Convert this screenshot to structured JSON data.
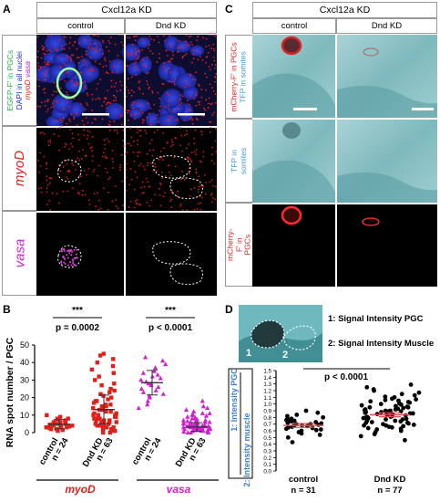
{
  "panelA": {
    "label": "A",
    "header": "Cxcl12a KD",
    "cols": [
      "control",
      "Dnd KD"
    ],
    "row1_label": [
      {
        "text": "EGFP-F' in PGCs",
        "color": "#22b14c"
      },
      {
        "text": "DAPI in all nuclei",
        "color": "#1f2fd6"
      },
      {
        "text": "myoD",
        "color": "#e0201a"
      },
      {
        "text": "vasa",
        "color": "#c020c0"
      }
    ],
    "row2_label": "myoD",
    "row3_label": "vasa"
  },
  "panelB": {
    "label": "B",
    "ylabel": "RNA spot number / PGC",
    "sig": [
      "***",
      "***"
    ],
    "pvals": [
      "p = 0.0002",
      "p < 0.0001"
    ],
    "groups": [
      {
        "name": "control",
        "n": "n = 24"
      },
      {
        "name": "Dnd KD",
        "n": "n = 63"
      },
      {
        "name": "control",
        "n": "n = 24"
      },
      {
        "name": "Dnd KD",
        "n": "n = 63"
      }
    ],
    "gene_labels": [
      "myoD",
      "vasa"
    ]
  },
  "panelC": {
    "label": "C",
    "header": "Cxcl12a KD",
    "cols": [
      "control",
      "Dnd KD"
    ],
    "row1_label": [
      {
        "text": "mCherry-F' in PGCs",
        "color": "#e0201a"
      },
      {
        "text": "TFP in somites",
        "color": "#3a9ad9"
      }
    ],
    "row2_label": "TFP in somites",
    "row3_label": "mCherry-F' in PGCs"
  },
  "panelD": {
    "label": "D",
    "legend1": "1: Signal Intensity PGC",
    "legend2": "2: Signal Intensity Muscle",
    "region1": "1",
    "region2": "2",
    "sig": "***",
    "pval": "p < 0.0001",
    "ylabel_top": "1: Intensity PGC",
    "ylabel_bottom": "2: Intensity muscle",
    "groups": [
      {
        "name": "control",
        "n": "n = 31"
      },
      {
        "name": "Dnd KD",
        "n": "n = 77"
      }
    ]
  },
  "chart_data": [
    {
      "type": "scatter",
      "panel": "B",
      "ylabel": "RNA spot number / PGC",
      "ylim": [
        0,
        50
      ],
      "yticks": [
        0,
        10,
        20,
        30,
        40,
        50
      ],
      "categories": [
        "control (myoD)",
        "Dnd KD (myoD)",
        "control (vasa)",
        "Dnd KD (vasa)"
      ],
      "colors": [
        "#e0201a",
        "#e0201a",
        "#d020d0",
        "#d020d0"
      ],
      "markers": [
        "square",
        "square",
        "triangle",
        "triangle"
      ],
      "means": [
        4.8,
        13.2,
        28.5,
        3.2
      ],
      "sd": [
        2.7,
        8.2,
        7.0,
        2.5
      ],
      "series": [
        {
          "values": [
            1,
            1.5,
            2,
            2,
            2.5,
            3,
            3,
            3.5,
            3.5,
            4,
            4,
            4.5,
            5,
            5,
            5.5,
            6,
            6,
            6.5,
            7,
            7.5,
            8,
            8,
            9,
            10
          ]
        },
        {
          "values": [
            0,
            0,
            1,
            1,
            2,
            2,
            2,
            3,
            3,
            3,
            4,
            4,
            4,
            5,
            5,
            5,
            6,
            6,
            6,
            7,
            7,
            7,
            8,
            8,
            8,
            9,
            9,
            10,
            10,
            10,
            11,
            11,
            12,
            12,
            13,
            13,
            14,
            14,
            15,
            15,
            16,
            16,
            17,
            18,
            18,
            19,
            20,
            21,
            22,
            23,
            24,
            25,
            27,
            28,
            30,
            32,
            34,
            36,
            38,
            40,
            42,
            44,
            45
          ]
        },
        {
          "values": [
            14,
            16,
            18,
            20,
            21,
            22,
            23,
            24,
            25,
            26,
            27,
            28,
            28,
            29,
            30,
            31,
            32,
            33,
            34,
            35,
            37,
            39,
            41,
            43
          ]
        },
        {
          "values": [
            0,
            0,
            0,
            0.5,
            0.5,
            1,
            1,
            1,
            1,
            1.5,
            1.5,
            1.5,
            2,
            2,
            2,
            2,
            2,
            2.5,
            2.5,
            2.5,
            3,
            3,
            3,
            3,
            3,
            3.5,
            3.5,
            3.5,
            3.5,
            4,
            4,
            4,
            4,
            4.5,
            4.5,
            4.5,
            5,
            5,
            5,
            5.5,
            5.5,
            6,
            6,
            6,
            6.5,
            6.5,
            7,
            7,
            7.5,
            8,
            8,
            8.5,
            9,
            9.5,
            10,
            10,
            11,
            11,
            12,
            13,
            14,
            15,
            18
          ]
        }
      ]
    },
    {
      "type": "scatter",
      "panel": "D",
      "ylim": [
        0.0,
        1.5
      ],
      "yticks": [
        0.0,
        0.1,
        0.2,
        0.3,
        0.4,
        0.5,
        0.6,
        0.7,
        0.8,
        0.9,
        1.0,
        1.1,
        1.2,
        1.3,
        1.4,
        1.5
      ],
      "categories": [
        "control",
        "Dnd KD"
      ],
      "means": [
        0.68,
        0.84
      ],
      "sem": [
        0.03,
        0.03
      ],
      "series": [
        {
          "values": [
            0.43,
            0.5,
            0.54,
            0.56,
            0.58,
            0.6,
            0.61,
            0.62,
            0.63,
            0.64,
            0.65,
            0.66,
            0.67,
            0.68,
            0.68,
            0.69,
            0.7,
            0.7,
            0.71,
            0.72,
            0.73,
            0.74,
            0.75,
            0.76,
            0.77,
            0.78,
            0.8,
            0.82,
            0.84,
            0.87,
            0.9
          ]
        },
        {
          "values": [
            0.46,
            0.52,
            0.55,
            0.58,
            0.6,
            0.62,
            0.63,
            0.64,
            0.65,
            0.66,
            0.67,
            0.68,
            0.68,
            0.69,
            0.7,
            0.71,
            0.72,
            0.72,
            0.73,
            0.74,
            0.75,
            0.75,
            0.76,
            0.77,
            0.77,
            0.78,
            0.79,
            0.79,
            0.8,
            0.81,
            0.81,
            0.82,
            0.82,
            0.83,
            0.84,
            0.84,
            0.85,
            0.85,
            0.86,
            0.86,
            0.87,
            0.87,
            0.88,
            0.88,
            0.89,
            0.89,
            0.9,
            0.9,
            0.91,
            0.92,
            0.92,
            0.93,
            0.94,
            0.95,
            0.95,
            0.96,
            0.97,
            0.98,
            0.99,
            1.0,
            1.01,
            1.02,
            1.03,
            1.04,
            1.05,
            1.06,
            1.07,
            1.08,
            1.1,
            1.11,
            1.13,
            1.15,
            1.17,
            1.2,
            1.22,
            1.25,
            1.29
          ]
        }
      ]
    }
  ]
}
